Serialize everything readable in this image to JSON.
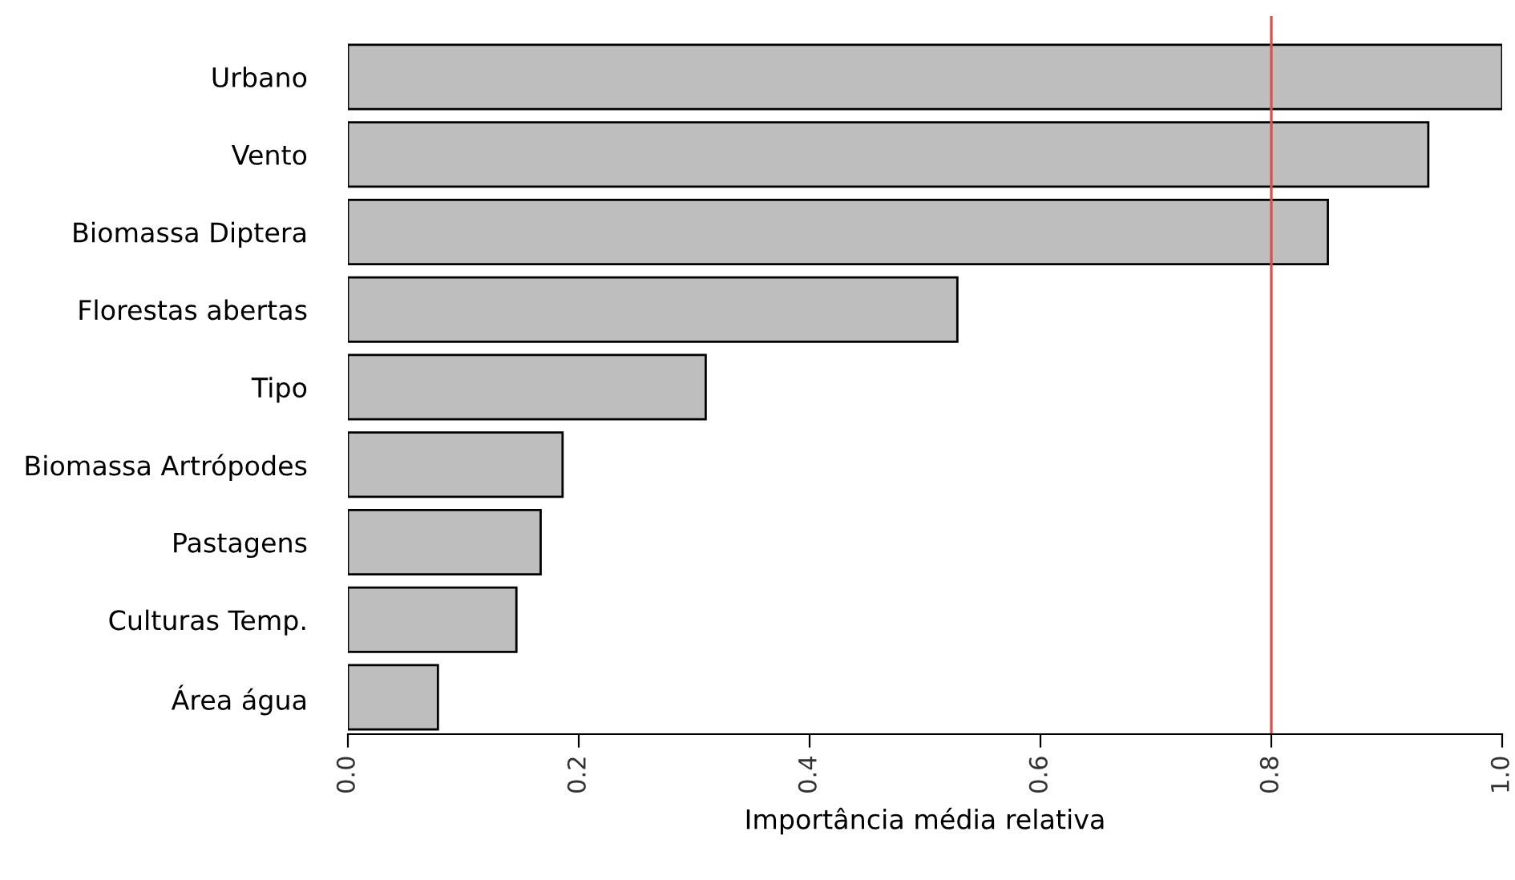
{
  "chart_data": {
    "type": "bar",
    "orientation": "horizontal",
    "xlabel": "Importância média relativa",
    "categories": [
      "Urbano",
      "Vento",
      "Biomassa Diptera",
      "Florestas abertas",
      "Tipo",
      "Biomassa Artrópodes",
      "Pastagens",
      "Culturas Temp.",
      "Área água"
    ],
    "values": [
      1.0,
      0.936,
      0.849,
      0.528,
      0.31,
      0.186,
      0.167,
      0.146,
      0.078
    ],
    "color": "#bebebe",
    "xlim": [
      0,
      1
    ],
    "xticks": [
      {
        "value": 0,
        "label": "0.0"
      },
      0.2,
      0.4,
      0.6,
      0.8,
      {
        "value": 1,
        "label": "1.0"
      }
    ],
    "ref_lines": [
      {
        "axis": "x",
        "value": 0.8,
        "color": "#d9534f"
      }
    ],
    "grid": false,
    "legend": false
  }
}
